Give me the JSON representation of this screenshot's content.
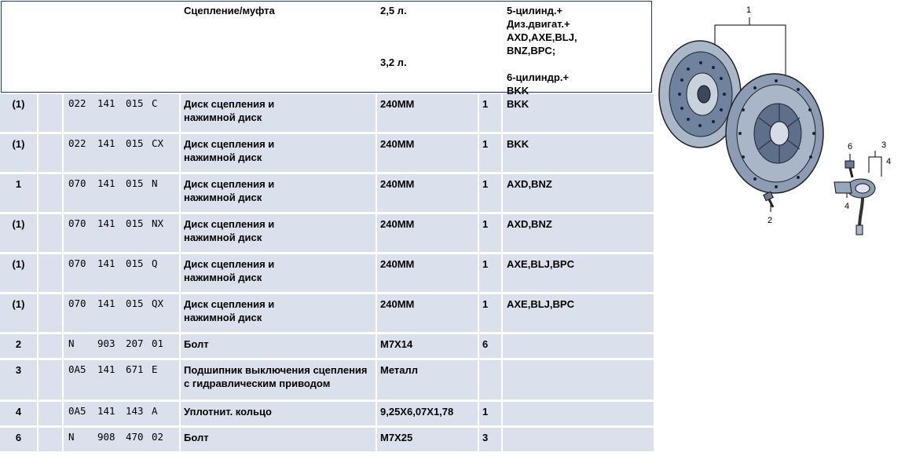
{
  "header": {
    "title": "Сцепление/муфта",
    "engine_1": "2,5 л.",
    "engine_2": "3,2 л.",
    "desc": "5-цилинд.+\nДиз.двигат.+\nAXD,AXE,BLJ,\nBNZ,BPC;\n\n6-цилиндр.+\nBKK"
  },
  "rows": [
    {
      "pos": "(1)",
      "pn": [
        "022",
        "141",
        "015",
        "C"
      ],
      "name": "Диск сцепления и\nнажимной диск",
      "spec": "240MM",
      "qty": "1",
      "note": "BKK"
    },
    {
      "pos": "(1)",
      "pn": [
        "022",
        "141",
        "015",
        "CX"
      ],
      "name": "Диск сцепления и\nнажимной диск",
      "spec": "240MM",
      "qty": "1",
      "note": "BKK"
    },
    {
      "pos": "1",
      "pn": [
        "070",
        "141",
        "015",
        "N"
      ],
      "name": "Диск сцепления и\nнажимной диск",
      "spec": "240MM",
      "qty": "1",
      "note": "AXD,BNZ"
    },
    {
      "pos": "(1)",
      "pn": [
        "070",
        "141",
        "015",
        "NX"
      ],
      "name": "Диск сцепления и\nнажимной диск",
      "spec": "240MM",
      "qty": "1",
      "note": "AXD,BNZ"
    },
    {
      "pos": "(1)",
      "pn": [
        "070",
        "141",
        "015",
        "Q"
      ],
      "name": "Диск сцепления и\nнажимной диск",
      "spec": "240MM",
      "qty": "1",
      "note": "AXE,BLJ,BPC"
    },
    {
      "pos": "(1)",
      "pn": [
        "070",
        "141",
        "015",
        "QX"
      ],
      "name": "Диск сцепления и\nнажимной диск",
      "spec": "240MM",
      "qty": "1",
      "note": "AXE,BLJ,BPC"
    },
    {
      "pos": "2",
      "pn": [
        "N",
        "903",
        "207",
        "01"
      ],
      "name": "Болт",
      "spec": "M7X14",
      "qty": "6",
      "note": ""
    },
    {
      "pos": "3",
      "pn": [
        "0A5",
        "141",
        "671",
        "E"
      ],
      "name": "Подшипник выключения сцепления\nс гидравлическим приводом",
      "spec": "Металл",
      "qty": "",
      "note": ""
    },
    {
      "pos": "4",
      "pn": [
        "0A5",
        "141",
        "143",
        "A"
      ],
      "name": "Уплотнит. кольцо",
      "spec": "9,25X6,07X1,78",
      "qty": "1",
      "note": ""
    },
    {
      "pos": "6",
      "pn": [
        "N",
        "908",
        "470",
        "02"
      ],
      "name": "Болт",
      "spec": "M7X25",
      "qty": "3",
      "note": ""
    }
  ],
  "diagram": {
    "labels": [
      "1",
      "2",
      "3",
      "4",
      "4",
      "6"
    ]
  }
}
